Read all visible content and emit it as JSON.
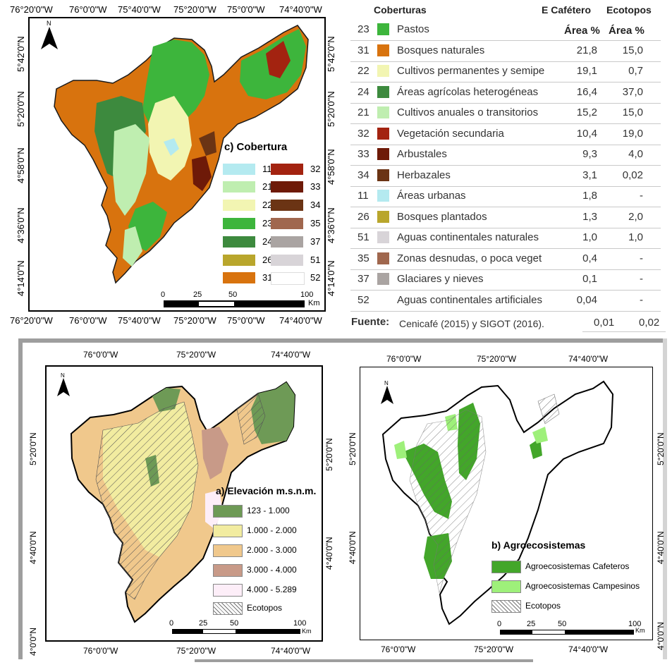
{
  "colors": {
    "c11": "#b4eaf0",
    "c21": "#bfeeb0",
    "c22": "#f2f5b2",
    "c23": "#3db53c",
    "c24": "#3d8a3e",
    "c26": "#b9a62c",
    "c31": "#d8730e",
    "c32": "#a32310",
    "c33": "#6e1a08",
    "c34": "#6b3414",
    "c35": "#a0674e",
    "c37": "#aaa4a2",
    "c51": "#d8d4d8",
    "c52": "#ffffff",
    "elev1": "#6e9a56",
    "elev2": "#f2eca0",
    "elev3": "#f0c88c",
    "elev4": "#c89a88",
    "elev5": "#fdeef8",
    "agro_cafe": "#43a62a",
    "agro_camp": "#9ef07a"
  },
  "map_c": {
    "lon_top": [
      "76°20'0\"W",
      "76°0'0\"W",
      "75°40'0\"W",
      "75°20'0\"W",
      "75°0'0\"W",
      "74°40'0\"W"
    ],
    "lon_bottom": [
      "76°20'0\"W",
      "76°0'0\"W",
      "75°40'0\"W",
      "75°20'0\"W",
      "75°0'0\"W",
      "74°40'0\"W"
    ],
    "lat_left": [
      "5°42'0\"N",
      "5°20'0\"N",
      "4°58'0\"N",
      "4°36'0\"N",
      "4°14'0\"N"
    ],
    "lat_right": [
      "5°42'0\"N",
      "5°20'0\"N",
      "4°58'0\"N",
      "4°36'0\"N",
      "4°14'0\"N"
    ],
    "legend_title": "c) Cobertura",
    "legend_left": [
      {
        "code": "11",
        "color_key": "c11"
      },
      {
        "code": "21",
        "color_key": "c21"
      },
      {
        "code": "22",
        "color_key": "c22"
      },
      {
        "code": "23",
        "color_key": "c23"
      },
      {
        "code": "24",
        "color_key": "c24"
      },
      {
        "code": "26",
        "color_key": "c26"
      },
      {
        "code": "31",
        "color_key": "c31"
      }
    ],
    "legend_right": [
      {
        "code": "32",
        "color_key": "c32"
      },
      {
        "code": "33",
        "color_key": "c33"
      },
      {
        "code": "34",
        "color_key": "c34"
      },
      {
        "code": "35",
        "color_key": "c35"
      },
      {
        "code": "37",
        "color_key": "c37"
      },
      {
        "code": "51",
        "color_key": "c51"
      },
      {
        "code": "52",
        "color_key": "c52"
      }
    ],
    "scale": [
      "0",
      "25",
      "50",
      "100"
    ],
    "scale_unit": "Km",
    "north": "N"
  },
  "table": {
    "header_name": "Coberturas",
    "header_col1": "E Cafétero",
    "header_col2": "Ecotopos",
    "sub_col1": "Área %",
    "sub_col2": "Área %",
    "rows": [
      {
        "code": "23",
        "color": "#3db53c",
        "name": "Pastos",
        "v1": "",
        "v2": ""
      },
      {
        "code": "31",
        "color": "#d8730e",
        "name": "Bosques naturales",
        "v1": "21,8",
        "v2": "15,0"
      },
      {
        "code": "22",
        "color": "#f2f5b2",
        "name": "Cultivos  permanentes y semipe",
        "v1": "19,1",
        "v2": "0,7"
      },
      {
        "code": "24",
        "color": "#3d8a3e",
        "name": "Áreas agrícolas heterogéneas",
        "v1": "16,4",
        "v2": "37,0"
      },
      {
        "code": "21",
        "color": "#bfeeb0",
        "name": "Cultivos anuales o transitorios",
        "v1": "15,2",
        "v2": "15,0"
      },
      {
        "code": "32",
        "color": "#a32310",
        "name": "Vegetación secundaria",
        "v1": "10,4",
        "v2": "19,0"
      },
      {
        "code": "33",
        "color": "#6e1a08",
        "name": "Arbustales",
        "v1": "9,3",
        "v2": "4,0"
      },
      {
        "code": "34",
        "color": "#6b3414",
        "name": "Herbazales",
        "v1": "3,1",
        "v2": "0,02"
      },
      {
        "code": "11",
        "color": "#b4eaf0",
        "name": "Áreas urbanas",
        "v1": "1,8",
        "v2": "-"
      },
      {
        "code": "26",
        "color": "#b9a62c",
        "name": "Bosques plantados",
        "v1": "1,3",
        "v2": "2,0"
      },
      {
        "code": "51",
        "color": "#d8d4d8",
        "name": "Aguas continentales naturales",
        "v1": "1,0",
        "v2": "1,0"
      },
      {
        "code": "35",
        "color": "#a0674e",
        "name": "Zonas desnudas, o poca veget",
        "v1": "0,4",
        "v2": "-"
      },
      {
        "code": "37",
        "color": "#aaa4a2",
        "name": "Glaciares y nieves",
        "v1": "0,1",
        "v2": "-"
      },
      {
        "code": "52",
        "color": "#ffffff",
        "name": "Aguas continentales artificiales",
        "v1": "0,04",
        "v2": "-"
      }
    ],
    "footer_label": "Fuente:",
    "footer_text": "Cenicafé (2015) y SIGOT (2016).",
    "footer_v1": "0,01",
    "footer_v2": "0,02"
  },
  "map_a": {
    "lon_top": [
      "76°0'0\"W",
      "75°20'0\"W",
      "74°40'0\"W"
    ],
    "lon_bottom": [
      "76°0'0\"W",
      "75°20'0\"W",
      "74°40'0\"W"
    ],
    "lat_left": [
      "5°20'0\"N",
      "4°40'0\"N",
      "4°0'0\"N"
    ],
    "lat_right": [
      "5°20'0\"N",
      "4°40'0\"N"
    ],
    "legend_title": "a) Elevación m.s.n.m.",
    "legend": [
      {
        "label": "123 - 1.000",
        "color_key": "elev1"
      },
      {
        "label": "1.000 - 2.000",
        "color_key": "elev2"
      },
      {
        "label": "2.000 - 3.000",
        "color_key": "elev3"
      },
      {
        "label": "3.000 - 4.000",
        "color_key": "elev4"
      },
      {
        "label": "4.000 - 5.289",
        "color_key": "elev5"
      },
      {
        "label": "Ecotopos",
        "color_key": ""
      }
    ],
    "scale": [
      "0",
      "25",
      "50",
      "100"
    ],
    "scale_unit": "Km",
    "north": "N"
  },
  "map_b": {
    "lon_top": [
      "76°0'0\"W",
      "75°20'0\"W",
      "74°40'0\"W"
    ],
    "lon_bottom": [
      "76°0'0\"W",
      "75°20'0\"W",
      "74°40'0\"W"
    ],
    "lat_left": [
      "5°20'0\"N",
      "4°40'0\"N"
    ],
    "lat_right": [
      "5°20'0\"N",
      "4°40'0\"N",
      "4°0'0\"N"
    ],
    "legend_title": "b) Agroecosistemas",
    "legend": [
      {
        "label": "Agroecosistemas Cafeteros",
        "color_key": "agro_cafe"
      },
      {
        "label": "Agroecosistemas Campesinos",
        "color_key": "agro_camp"
      },
      {
        "label": "Ecotopos",
        "color_key": ""
      }
    ],
    "scale": [
      "0",
      "25",
      "50",
      "100"
    ],
    "scale_unit": "Km",
    "north": "N"
  }
}
